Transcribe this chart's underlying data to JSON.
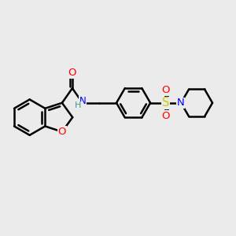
{
  "bg_color": "#ebebeb",
  "bond_color": "#000000",
  "bond_width": 1.8,
  "atom_colors": {
    "O": "#ff0000",
    "N": "#0000ff",
    "S": "#cccc00",
    "H": "#4a9090",
    "C": "#000000"
  },
  "font_size": 8.5,
  "fig_size": [
    3.0,
    3.0
  ],
  "dpi": 100
}
